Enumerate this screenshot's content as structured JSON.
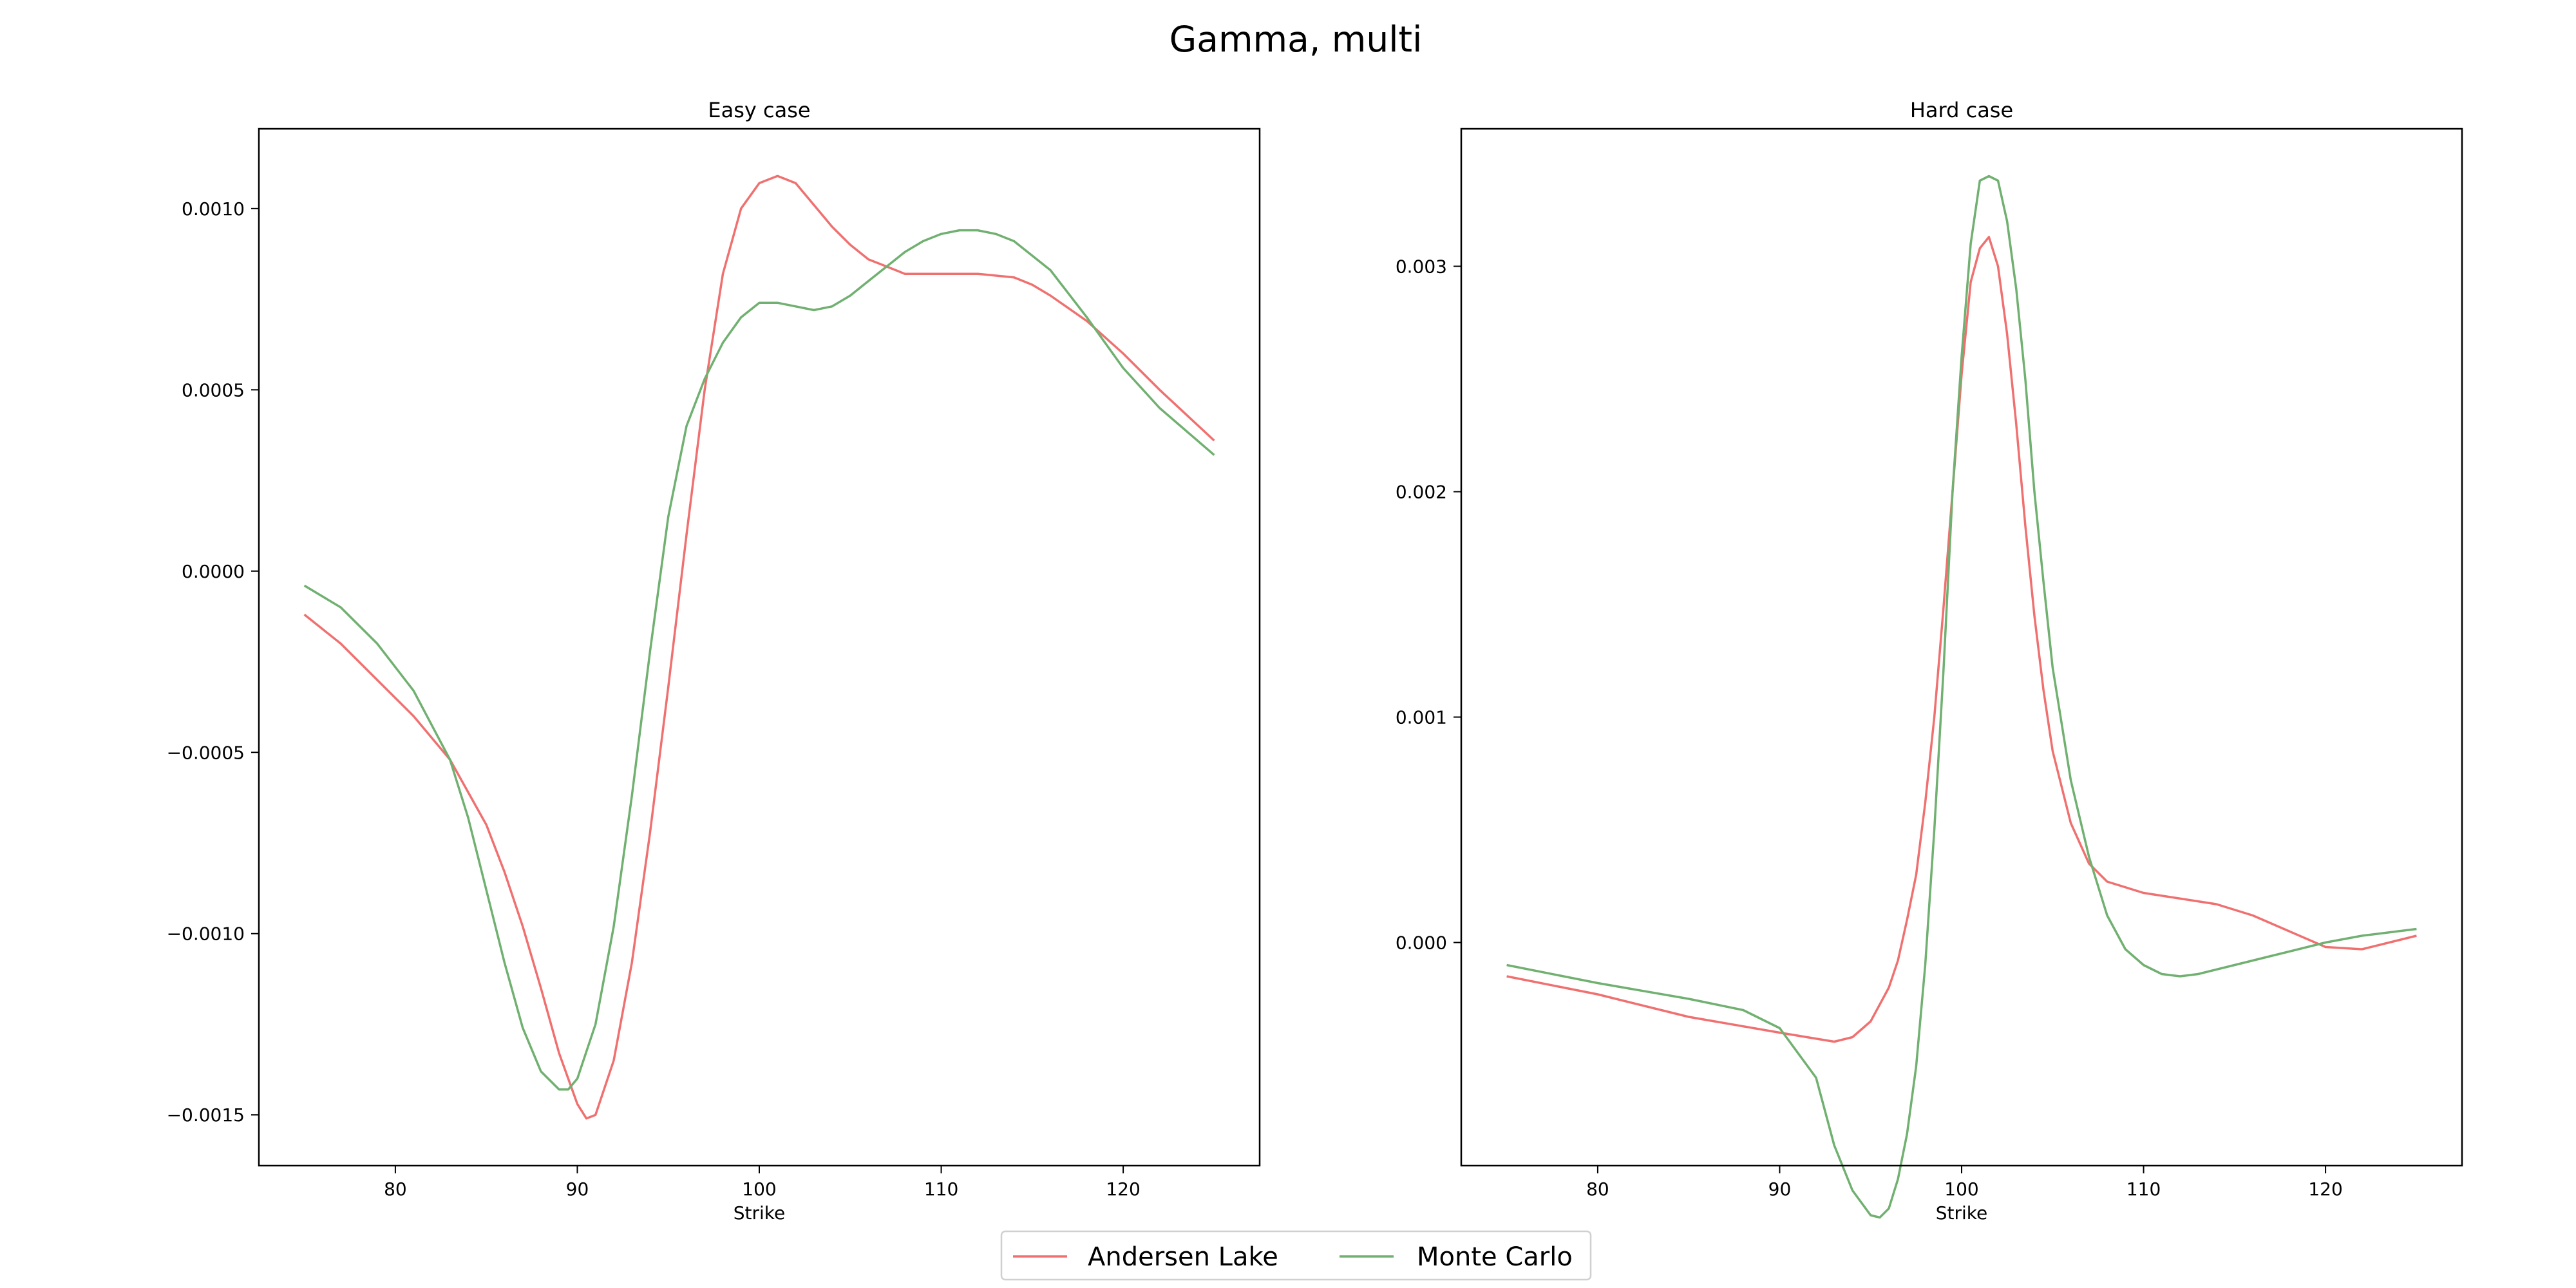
{
  "figure": {
    "suptitle": "Gamma, multi"
  },
  "legend": {
    "entries": [
      {
        "label": "Andersen Lake",
        "color": "#f07070"
      },
      {
        "label": "Monte Carlo",
        "color": "#70b070"
      }
    ],
    "placement": "bottom-center"
  },
  "chart_data": [
    {
      "type": "line",
      "title": "Easy case",
      "xlabel": "Strike",
      "ylabel": "",
      "xlim": [
        72.5,
        127.5
      ],
      "ylim": [
        -0.00164,
        0.00122
      ],
      "xticks": [
        80,
        90,
        100,
        110,
        120
      ],
      "xtick_labels": [
        "80",
        "90",
        "100",
        "110",
        "120"
      ],
      "yticks": [
        -0.0015,
        -0.001,
        -0.0005,
        0.0,
        0.0005,
        0.001
      ],
      "ytick_labels": [
        "−0.0015",
        "−0.0010",
        "−0.0005",
        "0.0000",
        "0.0005",
        "0.0010"
      ],
      "grid": false,
      "series": [
        {
          "name": "Andersen Lake",
          "color": "#f07070",
          "x": [
            75,
            77,
            79,
            81,
            83,
            85,
            86,
            87,
            88,
            89,
            90,
            90.5,
            91,
            92,
            93,
            94,
            95,
            96,
            97,
            98,
            99,
            100,
            101,
            102,
            103,
            104,
            105,
            106,
            107,
            108,
            109,
            110,
            112,
            114,
            115,
            116,
            118,
            120,
            122,
            125
          ],
          "y": [
            -0.00012,
            -0.0002,
            -0.0003,
            -0.0004,
            -0.00052,
            -0.0007,
            -0.00083,
            -0.00098,
            -0.00115,
            -0.00133,
            -0.00147,
            -0.00151,
            -0.0015,
            -0.00135,
            -0.00108,
            -0.00072,
            -0.00032,
            0.0001,
            0.0005,
            0.00082,
            0.001,
            0.00107,
            0.00109,
            0.00107,
            0.00101,
            0.00095,
            0.0009,
            0.00086,
            0.00084,
            0.00082,
            0.00082,
            0.00082,
            0.00082,
            0.00081,
            0.00079,
            0.00076,
            0.00069,
            0.0006,
            0.0005,
            0.00036
          ]
        },
        {
          "name": "Monte Carlo",
          "color": "#70b070",
          "x": [
            75,
            77,
            79,
            81,
            83,
            84,
            85,
            86,
            87,
            88,
            89,
            89.5,
            90,
            91,
            92,
            93,
            94,
            95,
            96,
            97,
            98,
            99,
            100,
            101,
            102,
            103,
            104,
            105,
            106,
            107,
            108,
            109,
            110,
            111,
            112,
            113,
            114,
            116,
            118,
            120,
            122,
            125
          ],
          "y": [
            -4e-05,
            -0.0001,
            -0.0002,
            -0.00033,
            -0.00052,
            -0.00068,
            -0.00088,
            -0.00108,
            -0.00126,
            -0.00138,
            -0.00143,
            -0.00143,
            -0.0014,
            -0.00125,
            -0.00098,
            -0.00062,
            -0.00022,
            0.00015,
            0.0004,
            0.00053,
            0.00063,
            0.0007,
            0.00074,
            0.00074,
            0.00073,
            0.00072,
            0.00073,
            0.00076,
            0.0008,
            0.00084,
            0.00088,
            0.00091,
            0.00093,
            0.00094,
            0.00094,
            0.00093,
            0.00091,
            0.00083,
            0.0007,
            0.00056,
            0.00045,
            0.00032
          ]
        }
      ]
    },
    {
      "type": "line",
      "title": "Hard case",
      "xlabel": "Strike",
      "ylabel": "",
      "xlim": [
        72.5,
        127.5
      ],
      "ylim": [
        -0.00099,
        0.00361
      ],
      "xticks": [
        80,
        90,
        100,
        110,
        120
      ],
      "xtick_labels": [
        "80",
        "90",
        "100",
        "110",
        "120"
      ],
      "yticks": [
        0.0,
        0.001,
        0.002,
        0.003
      ],
      "ytick_labels": [
        "0.000",
        "0.001",
        "0.002",
        "0.003"
      ],
      "grid": false,
      "series": [
        {
          "name": "Andersen Lake",
          "color": "#f07070",
          "x": [
            75,
            80,
            85,
            90,
            93,
            94,
            95,
            96,
            96.5,
            97,
            97.5,
            98,
            98.5,
            99,
            99.5,
            100,
            100.5,
            101,
            101.5,
            102,
            102.5,
            103,
            103.5,
            104,
            104.5,
            105,
            106,
            107,
            108,
            110,
            114,
            116,
            118,
            120,
            122,
            125
          ],
          "y": [
            -0.00015,
            -0.00023,
            -0.00033,
            -0.0004,
            -0.00044,
            -0.00042,
            -0.00035,
            -0.0002,
            -8e-05,
            0.0001,
            0.0003,
            0.00062,
            0.001,
            0.00148,
            0.002,
            0.00252,
            0.00293,
            0.00308,
            0.00313,
            0.003,
            0.0027,
            0.0023,
            0.00185,
            0.00145,
            0.00112,
            0.00085,
            0.00053,
            0.00035,
            0.00027,
            0.00022,
            0.00017,
            0.00012,
            5e-05,
            -2e-05,
            -3e-05,
            3e-05
          ]
        },
        {
          "name": "Monte Carlo",
          "color": "#70b070",
          "x": [
            75,
            80,
            85,
            88,
            90,
            92,
            93,
            94,
            95,
            95.5,
            96,
            96.5,
            97,
            97.5,
            98,
            98.5,
            99,
            99.5,
            100,
            100.5,
            101,
            101.5,
            102,
            102.5,
            103,
            103.5,
            104,
            104.5,
            105,
            106,
            107,
            108,
            109,
            110,
            111,
            112,
            113,
            115,
            117,
            120,
            122,
            125
          ],
          "y": [
            -0.0001,
            -0.00018,
            -0.00025,
            -0.0003,
            -0.00038,
            -0.0006,
            -0.0009,
            -0.0011,
            -0.00121,
            -0.00122,
            -0.00118,
            -0.00105,
            -0.00085,
            -0.00055,
            -0.0001,
            0.0005,
            0.0012,
            0.002,
            0.0026,
            0.0031,
            0.00338,
            0.0034,
            0.00338,
            0.0032,
            0.0029,
            0.0025,
            0.002,
            0.0016,
            0.00122,
            0.00072,
            0.00038,
            0.00012,
            -3e-05,
            -0.0001,
            -0.00014,
            -0.00015,
            -0.00014,
            -0.0001,
            -6e-05,
            0.0,
            3e-05,
            6e-05
          ]
        }
      ]
    }
  ]
}
